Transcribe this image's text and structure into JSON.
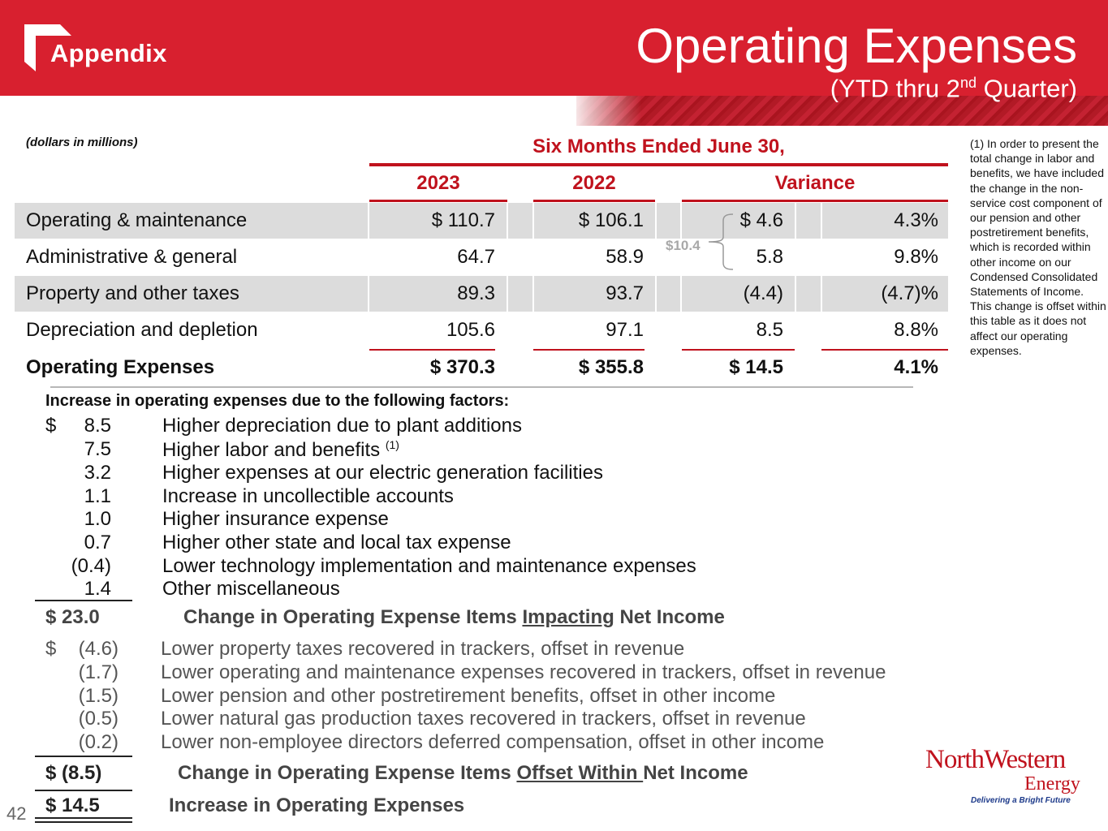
{
  "header": {
    "section": "Appendix",
    "title": "Operating Expenses",
    "subtitle_pre": "(YTD thru 2",
    "subtitle_sup": "nd",
    "subtitle_post": " Quarter)"
  },
  "table": {
    "units": "(dollars in millions)",
    "period": "Six Months Ended June 30,",
    "columns": [
      "2023",
      "2022",
      "Variance"
    ],
    "rows": [
      {
        "label": "Operating & maintenance",
        "y2023": "$ 110.7",
        "y2022": "$ 106.1",
        "var": "$ 4.6",
        "pct": "4.3%"
      },
      {
        "label": "Administrative & general",
        "y2023": "64.7",
        "y2022": "58.9",
        "var": "5.8",
        "pct": "9.8%"
      },
      {
        "label": "Property and other taxes",
        "y2023": "89.3",
        "y2022": "93.7",
        "var": "(4.4)",
        "pct": "(4.7)%"
      },
      {
        "label": "Depreciation and depletion",
        "y2023": "105.6",
        "y2022": "97.1",
        "var": "8.5",
        "pct": "8.8%"
      }
    ],
    "total": {
      "label": "Operating Expenses",
      "y2023": "$ 370.3",
      "y2022": "$ 355.8",
      "var": "$ 14.5",
      "pct": "4.1%"
    },
    "bracket_label": "$10.4"
  },
  "footnote": "(1) In order to present the total change in labor and benefits, we have included the change in the non-service cost component of our pension and other postretirement benefits, which is recorded within other income on our Condensed Consolidated Statements of Income. This change is offset within this table as it does not affect our operating expenses.",
  "factors": {
    "heading": "Increase in operating expenses due to the following factors:",
    "impacting": [
      {
        "dollar": "$",
        "amount": "8.5",
        "desc": "Higher depreciation due to plant additions"
      },
      {
        "dollar": "",
        "amount": "7.5",
        "desc": "Higher labor and benefits ",
        "sup": "(1)"
      },
      {
        "dollar": "",
        "amount": "3.2",
        "desc": "Higher expenses at our electric generation facilities"
      },
      {
        "dollar": "",
        "amount": "1.1",
        "desc": "Increase in uncollectible accounts"
      },
      {
        "dollar": "",
        "amount": "1.0",
        "desc": "Higher insurance expense"
      },
      {
        "dollar": "",
        "amount": "0.7",
        "desc": "Higher other state and local tax expense"
      },
      {
        "dollar": "",
        "amount": "(0.4)",
        "desc": "Lower technology implementation and maintenance expenses"
      },
      {
        "dollar": "",
        "amount": "1.4",
        "desc": "Other miscellaneous"
      }
    ],
    "impacting_total": {
      "amount": "$  23.0",
      "pre": "Change in Operating Expense Items ",
      "u": "Impacting",
      "post": " Net Income"
    },
    "offset": [
      {
        "dollar": "$",
        "amount": "(4.6)",
        "desc": "Lower property taxes recovered in trackers, offset in revenue"
      },
      {
        "dollar": "",
        "amount": "(1.7)",
        "desc": "Lower operating and maintenance expenses recovered in trackers, offset in revenue"
      },
      {
        "dollar": "",
        "amount": "(1.5)",
        "desc": "Lower pension and other postretirement benefits, offset in other income"
      },
      {
        "dollar": "",
        "amount": "(0.5)",
        "desc": "Lower natural gas production taxes recovered in trackers, offset in revenue"
      },
      {
        "dollar": "",
        "amount": "(0.2)",
        "desc": "Lower non-employee directors deferred compensation, offset in other income"
      }
    ],
    "offset_total": {
      "amount": "$   (8.5)",
      "pre": "Change in Operating Expense Items ",
      "u": "Offset Within ",
      "post": "Net Income"
    },
    "grand_total": {
      "amount": "$  14.5",
      "label": "Increase in Operating Expenses"
    }
  },
  "page_number": "42",
  "brand": {
    "name": "NorthWestern",
    "sub": "Energy",
    "tagline": "Delivering a Bright Future",
    "accent": "#d8202f"
  }
}
